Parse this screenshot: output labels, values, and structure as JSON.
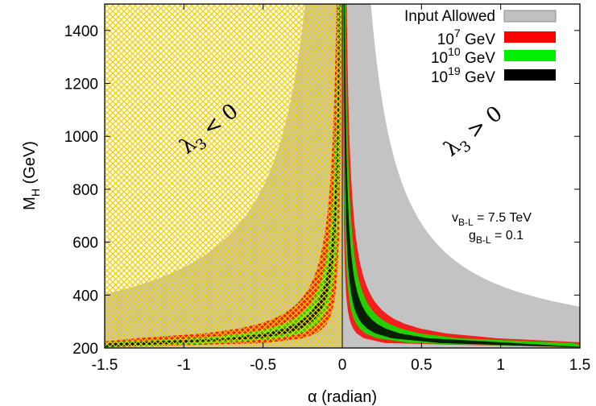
{
  "chart_data": {
    "type": "area",
    "xlabel": "α (radian)",
    "ylabel_main": "M",
    "ylabel_sub": "H",
    "ylabel_unit": " (GeV)",
    "xlim": [
      -1.5,
      1.5
    ],
    "ylim": [
      200,
      1500
    ],
    "xticks": [
      "-1.5",
      "-1",
      "-0.5",
      "0",
      "0.5",
      "1",
      "1.5"
    ],
    "yticks": [
      "200",
      "400",
      "600",
      "800",
      "1000",
      "1200",
      "1400"
    ],
    "grid": false,
    "legend_position": "top-right",
    "legend": [
      {
        "key": "input",
        "text": "Input Allowed",
        "base": "",
        "sup": "",
        "tail": "",
        "color": "#c0c0c0"
      },
      {
        "key": "e7",
        "text": "",
        "base": "10",
        "sup": "7",
        "tail": " GeV",
        "color": "#ff0000"
      },
      {
        "key": "e10",
        "text": "",
        "base": "10",
        "sup": "10",
        "tail": " GeV",
        "color": "#00ee00"
      },
      {
        "key": "e19",
        "text": "",
        "base": "10",
        "sup": "19",
        "tail": " GeV",
        "color": "#000000"
      }
    ],
    "region_labels": {
      "left": {
        "sym": "λ",
        "sub": "3",
        "rel": " < 0"
      },
      "right": {
        "sym": "λ",
        "sub": "3",
        "rel": " > 0"
      }
    },
    "params": [
      {
        "main": "v",
        "sub": "B-L",
        "val": " = 7.5 TeV"
      },
      {
        "main": "g",
        "sub": "B-L",
        "val": " = 0.1"
      }
    ],
    "series": [
      {
        "name": "Input Allowed",
        "color": "#c0c0c0",
        "left": {
          "inner_k": 0,
          "outer_k": 305,
          "floor": 345
        },
        "right": {
          "inner_k": 0,
          "outer_k": 235,
          "floor": 330
        }
      },
      {
        "name": "10^7 GeV",
        "color": "#ff0000",
        "left": {
          "inner_k": 9,
          "outer_k": 48
        },
        "right": {
          "inner_k": 5,
          "outer_k": 36
        }
      },
      {
        "name": "10^10 GeV",
        "color": "#00ee00",
        "left": {
          "inner_k": 14.5,
          "outer_k": 34
        },
        "right": {
          "inner_k": 8,
          "outer_k": 27
        }
      },
      {
        "name": "10^19 GeV",
        "color": "#000000",
        "left": {
          "inner_k": 19,
          "outer_k": 27
        },
        "right": {
          "inner_k": 11.5,
          "outer_k": 20
        }
      }
    ],
    "hatched_region": {
      "x": [
        -1.5,
        0
      ],
      "color": "#f0d000"
    }
  }
}
